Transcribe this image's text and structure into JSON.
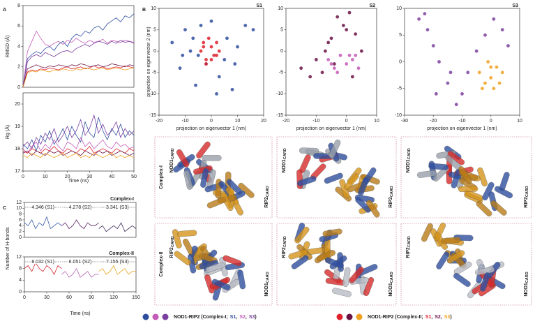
{
  "figure": {
    "panels": [
      "A",
      "B",
      "C"
    ],
    "row_labels": [
      "Complex-I",
      "Complex-II"
    ],
    "nod1": "NOD1",
    "rip2": "RIP2",
    "card": "CARD"
  },
  "legend": [
    {
      "label": "NOD1-RIP2 (Complex-I;",
      "separator": ",",
      "close": ")",
      "items": [
        {
          "name": "S1",
          "color": "#2e4d9e"
        },
        {
          "name": "S2",
          "color": "#c45bb8"
        },
        {
          "name": "S3",
          "color": "#7b3fa0"
        }
      ]
    },
    {
      "label": "NOD1-RIP2 (Complex-II;",
      "separator": ",",
      "close": ")",
      "items": [
        {
          "name": "S1",
          "color": "#e0202a"
        },
        {
          "name": "S2",
          "color": "#6b1245"
        },
        {
          "name": "S3",
          "color": "#f0a020"
        }
      ]
    }
  ],
  "chart_data": [
    {
      "type": "line",
      "ylabel": "RMSD (Å)",
      "x": [
        0,
        2,
        4,
        6,
        8,
        10,
        12,
        14,
        16,
        18,
        20,
        22,
        24,
        26,
        28,
        30,
        32,
        34,
        36,
        38,
        40,
        42,
        44,
        46,
        48,
        50
      ],
      "xlim": [
        0,
        50
      ],
      "ylim": [
        0,
        8
      ],
      "yticks": [
        0,
        2,
        4,
        6,
        8
      ],
      "series": [
        {
          "color": "#2e4d9e",
          "values": [
            0,
            2.8,
            3.2,
            3.5,
            3.3,
            3.8,
            4.0,
            3.6,
            4.2,
            4.5,
            4.0,
            4.8,
            5.2,
            5.0,
            5.5,
            5.3,
            5.8,
            6.0,
            5.6,
            6.2,
            6.5,
            6.8,
            6.4,
            7.0,
            6.8,
            7.2
          ]
        },
        {
          "color": "#c45bb8",
          "values": [
            0,
            3.5,
            4.5,
            5.5,
            4.8,
            4.2,
            4.0,
            4.3,
            4.5,
            4.2,
            4.6,
            4.4,
            4.8,
            4.5,
            4.3,
            4.6,
            4.4,
            4.5,
            4.7,
            4.3,
            4.6,
            4.5,
            4.4,
            4.6,
            4.5,
            4.4
          ]
        },
        {
          "color": "#7b3fa0",
          "values": [
            0,
            2.5,
            3.0,
            3.2,
            3.0,
            3.4,
            3.2,
            3.0,
            3.3,
            3.5,
            3.6,
            3.4,
            3.8,
            4.0,
            4.2,
            4.0,
            4.3,
            4.5,
            4.4,
            4.2,
            4.5,
            4.3,
            4.6,
            4.4,
            4.5,
            4.3
          ]
        },
        {
          "color": "#e0202a",
          "values": [
            0,
            1.5,
            1.7,
            1.6,
            1.8,
            1.7,
            1.9,
            1.8,
            1.7,
            1.9,
            2.0,
            1.8,
            1.9,
            2.0,
            1.8,
            1.9,
            2.1,
            1.9,
            2.0,
            1.8,
            1.9,
            2.0,
            1.9,
            2.1,
            2.0,
            1.9
          ]
        },
        {
          "color": "#6b1245",
          "values": [
            0,
            1.8,
            2.0,
            2.2,
            2.0,
            1.9,
            2.1,
            2.0,
            2.2,
            2.1,
            2.0,
            2.2,
            2.1,
            2.3,
            2.2,
            2.0,
            2.1,
            2.2,
            2.0,
            2.1,
            2.3,
            2.2,
            2.1,
            2.0,
            2.2,
            2.1
          ]
        },
        {
          "color": "#f0a020",
          "values": [
            0,
            1.4,
            1.6,
            1.5,
            1.7,
            1.6,
            1.5,
            1.7,
            1.6,
            1.8,
            1.7,
            1.6,
            1.8,
            1.7,
            1.9,
            1.8,
            1.7,
            1.8,
            1.9,
            1.7,
            1.8,
            1.9,
            1.8,
            1.7,
            1.8,
            1.9
          ]
        }
      ]
    },
    {
      "type": "line",
      "ylabel": "Rg (Å)",
      "xlabel": "Time (ns)",
      "x": [
        0,
        2,
        4,
        6,
        8,
        10,
        12,
        14,
        16,
        18,
        20,
        22,
        24,
        26,
        28,
        30,
        32,
        34,
        36,
        38,
        40,
        42,
        44,
        46,
        48,
        50
      ],
      "xlim": [
        0,
        50
      ],
      "xticks": [
        0,
        10,
        20,
        30,
        40,
        50
      ],
      "ylim": [
        17,
        20.5
      ],
      "yticks": [
        17,
        18,
        19,
        20
      ],
      "series": [
        {
          "color": "#2e4d9e",
          "values": [
            18.2,
            18.0,
            18.4,
            17.9,
            18.6,
            18.3,
            18.8,
            18.2,
            18.5,
            18.9,
            18.4,
            19.0,
            18.6,
            18.3,
            19.2,
            18.7,
            18.5,
            19.4,
            18.8,
            18.4,
            18.9,
            18.6,
            19.1,
            18.5,
            18.8,
            18.6
          ]
        },
        {
          "color": "#c45bb8",
          "values": [
            18.0,
            17.8,
            18.1,
            18.3,
            17.9,
            18.2,
            18.0,
            18.4,
            18.1,
            17.9,
            18.3,
            18.2,
            18.0,
            18.5,
            18.1,
            18.3,
            18.0,
            18.2,
            18.4,
            18.1,
            18.0,
            18.3,
            18.1,
            18.2,
            18.0,
            18.1
          ]
        },
        {
          "color": "#7b3fa0",
          "values": [
            18.1,
            18.3,
            18.0,
            18.5,
            18.2,
            18.7,
            18.4,
            18.9,
            18.3,
            18.6,
            19.0,
            18.5,
            18.8,
            19.3,
            18.6,
            18.9,
            19.5,
            18.7,
            19.1,
            18.6,
            18.8,
            19.2,
            18.5,
            18.9,
            18.6,
            18.8
          ]
        },
        {
          "color": "#e0202a",
          "values": [
            17.9,
            17.8,
            18.0,
            17.9,
            17.8,
            18.0,
            17.9,
            18.1,
            17.9,
            17.8,
            18.0,
            17.9,
            17.8,
            18.0,
            17.9,
            18.1,
            17.8,
            17.9,
            18.0,
            17.9,
            17.8,
            18.0,
            17.9,
            17.8,
            18.0,
            17.9
          ]
        },
        {
          "color": "#6b1245",
          "values": [
            17.8,
            17.9,
            17.7,
            17.9,
            17.8,
            17.7,
            17.9,
            17.8,
            17.9,
            17.7,
            17.8,
            17.9,
            17.8,
            17.7,
            17.9,
            17.8,
            17.7,
            17.9,
            17.8,
            17.9,
            17.7,
            17.8,
            17.9,
            17.8,
            17.7,
            17.8
          ]
        },
        {
          "color": "#f0a020",
          "values": [
            17.7,
            17.6,
            17.8,
            17.7,
            17.6,
            17.8,
            17.7,
            17.6,
            17.7,
            17.8,
            17.6,
            17.7,
            17.8,
            17.6,
            17.7,
            17.6,
            17.8,
            17.7,
            17.6,
            17.7,
            17.8,
            17.6,
            17.7,
            17.6,
            17.7,
            17.6
          ]
        }
      ]
    },
    {
      "type": "scatter",
      "title": "S1",
      "xlabel": "projection on eigenvector 1 (nm)",
      "ylabel": "projection on eigenvector 2 (nm)",
      "xlim": [
        -20,
        20
      ],
      "xticks": [
        -20,
        -10,
        0,
        10,
        20
      ],
      "ylim": [
        -15,
        10
      ],
      "yticks": [
        -15,
        -10,
        -5,
        0,
        5,
        10
      ],
      "series": [
        {
          "color": "#2e4d9e",
          "x": [
            -15,
            -12,
            -10,
            -8,
            -6,
            -4,
            -2,
            0,
            3,
            6,
            8,
            10,
            13,
            16,
            -11,
            -7,
            5,
            9,
            2,
            -5
          ],
          "values": [
            2,
            -4,
            5,
            0,
            -8,
            6,
            -3,
            7,
            -6,
            3,
            -9,
            1,
            6,
            5,
            -1,
            3,
            -2,
            -3,
            -10,
            -1
          ]
        },
        {
          "color": "#e0202a",
          "x": [
            -4,
            -3,
            -2,
            -1,
            0,
            1,
            2,
            3,
            -2,
            0,
            2,
            -3
          ],
          "values": [
            0,
            2,
            -2,
            3,
            1,
            -1,
            2,
            0,
            -3,
            -2,
            -1,
            1
          ]
        }
      ]
    },
    {
      "type": "scatter",
      "title": "S2",
      "xlabel": "projection on eigenvector 1 (nm)",
      "xlim": [
        -20,
        10
      ],
      "xticks": [
        -20,
        -10,
        0,
        10
      ],
      "ylim": [
        -15,
        10
      ],
      "yticks": [
        -15,
        -10,
        -5,
        0,
        5,
        10
      ],
      "series": [
        {
          "color": "#6b1245",
          "x": [
            -15,
            -12,
            -10,
            -7,
            -5,
            -3,
            -1,
            1,
            3,
            5,
            -8,
            -4,
            0,
            2,
            -6
          ],
          "values": [
            -4,
            -6,
            -2,
            0,
            3,
            8,
            6,
            9,
            4,
            0,
            -5,
            -3,
            5,
            -6,
            2
          ]
        },
        {
          "color": "#c45bb8",
          "x": [
            -6,
            -4,
            -2,
            0,
            2,
            4,
            -3,
            1,
            -5,
            3
          ],
          "values": [
            -2,
            -4,
            -1,
            -3,
            -2,
            -4,
            -5,
            -1,
            -3,
            -1
          ]
        }
      ]
    },
    {
      "type": "scatter",
      "title": "S3",
      "xlabel": "projection on eigenvector 1 (nm)",
      "xlim": [
        -30,
        10
      ],
      "xticks": [
        -30,
        -20,
        -10,
        0,
        10
      ],
      "ylim": [
        -10,
        10
      ],
      "yticks": [
        -10,
        -5,
        0,
        5,
        10
      ],
      "series": [
        {
          "color": "#7b3fa0",
          "x": [
            -25,
            -22,
            -20,
            -18,
            -15,
            -12,
            -10,
            -8,
            -5,
            -2,
            1,
            4,
            6,
            -14,
            -19,
            -23
          ],
          "values": [
            8,
            6,
            3,
            0,
            -4,
            -8,
            -6,
            -2,
            2,
            5,
            8,
            6,
            3,
            -2,
            -6,
            9
          ]
        },
        {
          "color": "#f0a020",
          "x": [
            -4,
            -2,
            0,
            2,
            4,
            -3,
            1,
            3,
            -1,
            0
          ],
          "values": [
            -2,
            -4,
            -3,
            -1,
            -2,
            -5,
            -5,
            -4,
            0,
            -1
          ]
        }
      ]
    },
    {
      "type": "line",
      "title": "Complex-I",
      "xlim": [
        0,
        150
      ],
      "ylim": [
        0,
        12
      ],
      "yticks": [
        0,
        2,
        4,
        6,
        8,
        10,
        12
      ],
      "annotations": [
        "4.346 (S1)",
        "4.278 (S2)",
        "3.341 (S3)"
      ],
      "series": [
        {
          "color": "#3b5ba8",
          "x": [
            0,
            5,
            10,
            15,
            20,
            25,
            30,
            35,
            40,
            45,
            50
          ],
          "values": [
            5,
            4,
            6,
            3,
            5,
            4,
            7,
            3,
            4,
            5,
            4
          ]
        },
        {
          "color": "#5c2463",
          "x": [
            50,
            55,
            60,
            65,
            70,
            75,
            80,
            85,
            90,
            95,
            100
          ],
          "values": [
            4,
            5,
            3,
            4,
            6,
            4,
            3,
            5,
            4,
            4,
            5
          ]
        },
        {
          "color": "#3a2a55",
          "x": [
            100,
            105,
            110,
            115,
            120,
            125,
            130,
            135,
            140,
            145,
            150
          ],
          "values": [
            3,
            4,
            2,
            3,
            4,
            3,
            5,
            2,
            3,
            4,
            3
          ]
        }
      ]
    },
    {
      "type": "line",
      "title": "Complex-II",
      "xlabel": "Time (ns)",
      "ylabel": "Number of H-bonds",
      "xlim": [
        0,
        150
      ],
      "xticks": [
        0,
        30,
        60,
        90,
        120,
        150
      ],
      "ylim": [
        0,
        12
      ],
      "yticks": [
        0,
        4,
        8,
        12
      ],
      "annotations": [
        "8.032 (S1)",
        "6.051 (S2)",
        "7.155 (S3)"
      ],
      "series": [
        {
          "color": "#d8262e",
          "x": [
            0,
            5,
            10,
            15,
            20,
            25,
            30,
            35,
            40,
            45,
            50
          ],
          "values": [
            8,
            9,
            7,
            10,
            8,
            7,
            9,
            8,
            6,
            9,
            8
          ]
        },
        {
          "color": "#b565b3",
          "x": [
            50,
            55,
            60,
            65,
            70,
            75,
            80,
            85,
            90,
            95,
            100
          ],
          "values": [
            6,
            7,
            5,
            6,
            8,
            5,
            6,
            7,
            5,
            6,
            6
          ]
        },
        {
          "color": "#e9a41c",
          "x": [
            100,
            105,
            110,
            115,
            120,
            125,
            130,
            135,
            140,
            145,
            150
          ],
          "values": [
            7,
            8,
            6,
            7,
            9,
            6,
            7,
            8,
            6,
            7,
            7
          ]
        }
      ]
    }
  ]
}
